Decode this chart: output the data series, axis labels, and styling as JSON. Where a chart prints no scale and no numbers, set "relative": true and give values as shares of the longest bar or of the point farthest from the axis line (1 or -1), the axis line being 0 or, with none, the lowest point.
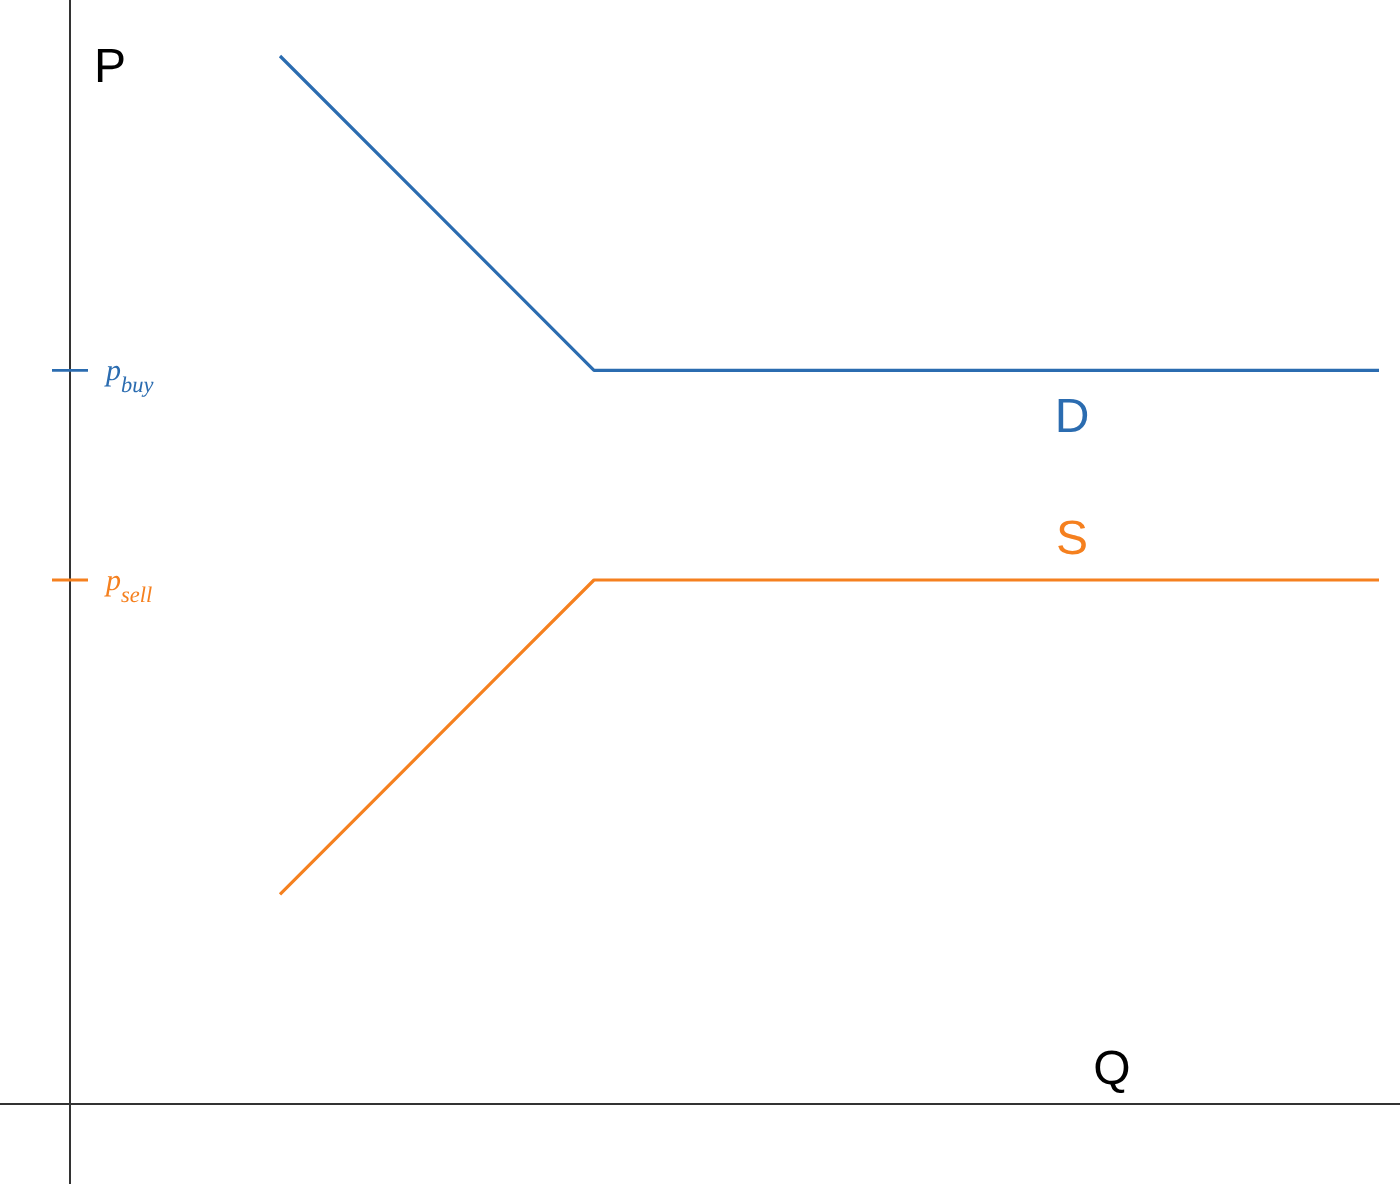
{
  "chart_data": {
    "type": "line",
    "relative": true,
    "xlabel": "Q",
    "ylabel": "P",
    "categories": [
      null,
      null,
      null,
      null,
      null,
      null,
      null,
      null
    ],
    "series": [
      {
        "name": "D",
        "color": "#2b6cb0",
        "values": [
          1,
          0.85,
          0.7,
          0.7,
          0.7,
          0.7,
          0.7,
          0.7
        ]
      },
      {
        "name": "S",
        "color": "#f5801f",
        "values": [
          0.2,
          0.35,
          0.5,
          0.5,
          0.5,
          0.5,
          0.5,
          0.5
        ]
      }
    ],
    "annotations": [
      "p$_{buy}$",
      "p$_{sell}$"
    ],
    "grid": false,
    "legend": false,
    "marker": "none",
    "line_style": "solid"
  }
}
